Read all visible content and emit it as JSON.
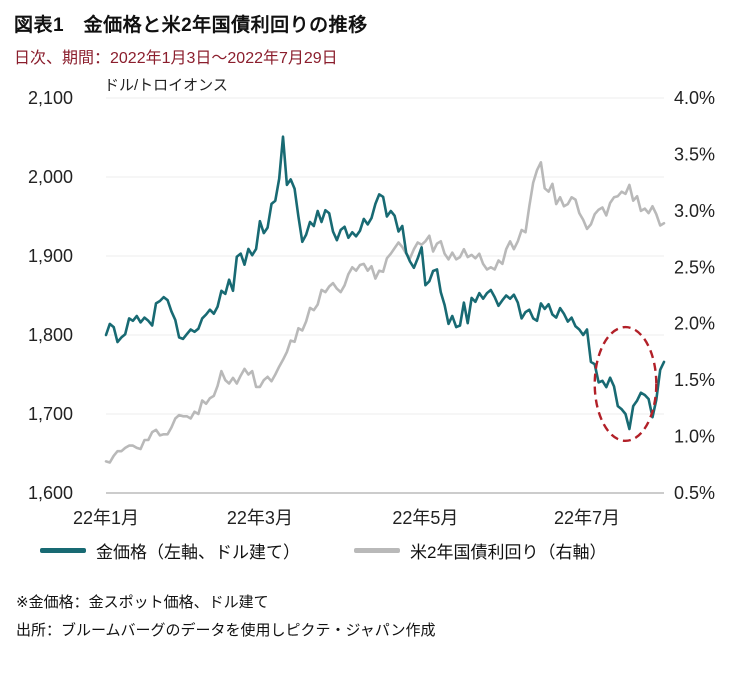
{
  "header": {
    "title": "図表1　金価格と米2年国債利回りの推移",
    "subtitle": "日次、期間：2022年1月3日～2022年7月29日"
  },
  "colors": {
    "gold_line": "#186a73",
    "yield_line": "#b9b9b9",
    "annotation_ellipse": "#b22028",
    "subtitle_text": "#8b1e2d"
  },
  "footnotes": {
    "note": "※金価格：金スポット価格、ドル建て",
    "source": "出所：ブルームバーグのデータを使用しピクテ・ジャパン作成"
  },
  "chart_data": {
    "type": "line",
    "title": "図表1　金価格と米2年国債利回りの推移",
    "subtitle": "日次、期間：2022年1月3日～2022年7月29日",
    "unit_label": "ドル/トロイオンス",
    "grid": "horizontal-light",
    "legend_position": "bottom",
    "x_ticks": [
      {
        "label": "22年1月",
        "index": 0
      },
      {
        "label": "22年3月",
        "index": 40
      },
      {
        "label": "22年5月",
        "index": 83
      },
      {
        "label": "22年7月",
        "index": 125
      }
    ],
    "left_axis": {
      "min": 1600,
      "max": 2100,
      "ticks": [
        {
          "label": "2,100",
          "value": 2100
        },
        {
          "label": "2,000",
          "value": 2000
        },
        {
          "label": "1,900",
          "value": 1900
        },
        {
          "label": "1,800",
          "value": 1800
        },
        {
          "label": "1,700",
          "value": 1700
        },
        {
          "label": "1,600",
          "value": 1600
        }
      ]
    },
    "right_axis": {
      "min": 0.5,
      "max": 4.0,
      "ticks": [
        {
          "label": "4.0%",
          "value": 4.0
        },
        {
          "label": "3.5%",
          "value": 3.5
        },
        {
          "label": "3.0%",
          "value": 3.0
        },
        {
          "label": "2.5%",
          "value": 2.5
        },
        {
          "label": "2.0%",
          "value": 2.0
        },
        {
          "label": "1.5%",
          "value": 1.5
        },
        {
          "label": "1.0%",
          "value": 1.0
        },
        {
          "label": "0.5%",
          "value": 0.5
        }
      ]
    },
    "series": [
      {
        "name": "金価格（左軸、ドル建て）",
        "axis": "left",
        "color": "#186a73",
        "values": [
          1800,
          1814,
          1810,
          1791,
          1797,
          1801,
          1821,
          1818,
          1824,
          1816,
          1822,
          1818,
          1812,
          1840,
          1843,
          1848,
          1844,
          1830,
          1819,
          1797,
          1795,
          1801,
          1807,
          1804,
          1808,
          1821,
          1826,
          1832,
          1827,
          1836,
          1856,
          1852,
          1870,
          1856,
          1899,
          1903,
          1889,
          1909,
          1901,
          1909,
          1944,
          1929,
          1936,
          1966,
          1970,
          1998,
          2051,
          1990,
          1997,
          1985,
          1950,
          1918,
          1927,
          1943,
          1938,
          1957,
          1943,
          1958,
          1954,
          1931,
          1920,
          1933,
          1937,
          1923,
          1930,
          1925,
          1932,
          1947,
          1940,
          1948,
          1966,
          1978,
          1975,
          1950,
          1957,
          1951,
          1931,
          1938,
          1904,
          1893,
          1885,
          1897,
          1911,
          1863,
          1868,
          1881,
          1883,
          1854,
          1838,
          1814,
          1824,
          1810,
          1812,
          1841,
          1815,
          1847,
          1842,
          1853,
          1846,
          1853,
          1857,
          1848,
          1837,
          1844,
          1850,
          1846,
          1851,
          1841,
          1821,
          1829,
          1832,
          1821,
          1818,
          1840,
          1833,
          1839,
          1826,
          1822,
          1834,
          1827,
          1817,
          1822,
          1811,
          1807,
          1800,
          1807,
          1766,
          1763,
          1740,
          1742,
          1734,
          1746,
          1735,
          1710,
          1706,
          1700,
          1681,
          1710,
          1717,
          1727,
          1724,
          1719,
          1696,
          1718,
          1756,
          1766
        ]
      },
      {
        "name": "米2年国債利回り（右軸）",
        "axis": "right",
        "color": "#b9b9b9",
        "values": [
          0.78,
          0.77,
          0.83,
          0.87,
          0.87,
          0.9,
          0.92,
          0.92,
          0.9,
          0.89,
          0.97,
          0.97,
          1.04,
          1.06,
          1.01,
          1.02,
          1.02,
          1.08,
          1.16,
          1.19,
          1.18,
          1.18,
          1.16,
          1.22,
          1.2,
          1.32,
          1.29,
          1.34,
          1.36,
          1.45,
          1.58,
          1.5,
          1.47,
          1.52,
          1.47,
          1.54,
          1.6,
          1.55,
          1.58,
          1.44,
          1.44,
          1.5,
          1.53,
          1.49,
          1.55,
          1.62,
          1.68,
          1.75,
          1.85,
          1.84,
          1.96,
          1.94,
          2.02,
          2.14,
          2.12,
          2.17,
          2.3,
          2.28,
          2.33,
          2.36,
          2.31,
          2.28,
          2.34,
          2.44,
          2.5,
          2.47,
          2.52,
          2.53,
          2.47,
          2.51,
          2.4,
          2.47,
          2.46,
          2.58,
          2.62,
          2.67,
          2.72,
          2.68,
          2.62,
          2.58,
          2.66,
          2.72,
          2.7,
          2.73,
          2.78,
          2.64,
          2.71,
          2.73,
          2.62,
          2.57,
          2.63,
          2.57,
          2.59,
          2.66,
          2.59,
          2.61,
          2.58,
          2.62,
          2.53,
          2.48,
          2.5,
          2.48,
          2.56,
          2.53,
          2.66,
          2.73,
          2.66,
          2.73,
          2.83,
          2.81,
          3.04,
          3.25,
          3.36,
          3.43,
          3.2,
          3.17,
          3.24,
          3.06,
          3.12,
          3.04,
          3.06,
          3.12,
          3.1,
          2.98,
          2.92,
          2.84,
          2.88,
          2.97,
          3.01,
          3.03,
          2.96,
          3.07,
          3.12,
          3.13,
          3.17,
          3.15,
          3.23,
          3.09,
          3.13,
          3.0,
          3.02,
          2.98,
          3.04,
          2.97,
          2.87,
          2.89
        ]
      }
    ],
    "annotation": {
      "shape": "ellipse",
      "style": "dashed",
      "color": "#b22028",
      "cx_index": 135,
      "cy_value": 1738,
      "rx_days": 8,
      "ry_value": 72
    }
  }
}
